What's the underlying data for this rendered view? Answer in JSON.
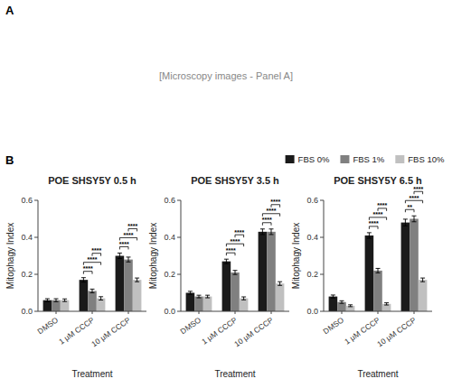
{
  "chart_data": [
    {
      "type": "bar",
      "title": "POE SHSY5Y 0.5 h",
      "categories": [
        "DMSO",
        "1 μM CCCP",
        "10 μM CCCP"
      ],
      "series": [
        {
          "name": "FBS 0%",
          "color": "#1a1a1a",
          "values": [
            0.06,
            0.17,
            0.3
          ],
          "errors": [
            0.008,
            0.012,
            0.015
          ]
        },
        {
          "name": "FBS 1%",
          "color": "#808080",
          "values": [
            0.06,
            0.11,
            0.28
          ],
          "errors": [
            0.008,
            0.01,
            0.013
          ]
        },
        {
          "name": "FBS 10%",
          "color": "#c0c0c0",
          "values": [
            0.06,
            0.07,
            0.17
          ],
          "errors": [
            0.007,
            0.009,
            0.01
          ]
        }
      ],
      "xlabel": "Treatment",
      "ylabel": "Mitophagy Index",
      "ylim": [
        0.0,
        0.6
      ],
      "yticks": [
        {
          "value": 0.0,
          "label": "0.0"
        },
        0.2,
        0.4,
        0.6
      ],
      "grid": false,
      "annotations": [
        {
          "text": "****",
          "category": "1 μM CCCP",
          "series": [
            "FBS 0%",
            "FBS 1%"
          ]
        },
        {
          "text": "****",
          "category": "1 μM CCCP",
          "series": [
            "FBS 0%",
            "FBS 10%"
          ]
        },
        {
          "text": "****",
          "category": "1 μM CCCP",
          "series": [
            "FBS 1%",
            "FBS 10%"
          ]
        },
        {
          "text": "****",
          "category": "10 μM CCCP",
          "series": [
            "FBS 0%",
            "FBS 1%"
          ]
        },
        {
          "text": "****",
          "category": "10 μM CCCP",
          "series": [
            "FBS 0%",
            "FBS 10%"
          ]
        },
        {
          "text": "****",
          "category": "10 μM CCCP",
          "series": [
            "FBS 1%",
            "FBS 10%"
          ]
        }
      ]
    },
    {
      "type": "bar",
      "title": "POE SHSY5Y 3.5 h",
      "categories": [
        "DMSO",
        "1 μM CCCP",
        "10 μM CCCP"
      ],
      "series": [
        {
          "name": "FBS 0%",
          "color": "#1a1a1a",
          "values": [
            0.1,
            0.27,
            0.43
          ],
          "errors": [
            0.008,
            0.012,
            0.015
          ]
        },
        {
          "name": "FBS 1%",
          "color": "#808080",
          "values": [
            0.08,
            0.21,
            0.43
          ],
          "errors": [
            0.007,
            0.011,
            0.015
          ]
        },
        {
          "name": "FBS 10%",
          "color": "#c0c0c0",
          "values": [
            0.08,
            0.07,
            0.15
          ],
          "errors": [
            0.007,
            0.008,
            0.01
          ]
        }
      ],
      "xlabel": "Treatment",
      "ylabel": "Mitophagy Index",
      "ylim": [
        0.0,
        0.6
      ],
      "yticks": [
        {
          "value": 0.0,
          "label": "0.0"
        },
        0.2,
        0.4,
        0.6
      ],
      "grid": false,
      "annotations": [
        {
          "text": "****",
          "category": "1 μM CCCP",
          "series": [
            "FBS 0%",
            "FBS 1%"
          ]
        },
        {
          "text": "****",
          "category": "1 μM CCCP",
          "series": [
            "FBS 0%",
            "FBS 10%"
          ]
        },
        {
          "text": "****",
          "category": "1 μM CCCP",
          "series": [
            "FBS 1%",
            "FBS 10%"
          ]
        },
        {
          "text": "****",
          "category": "10 μM CCCP",
          "series": [
            "FBS 0%",
            "FBS 1%"
          ]
        },
        {
          "text": "****",
          "category": "10 μM CCCP",
          "series": [
            "FBS 0%",
            "FBS 10%"
          ]
        },
        {
          "text": "****",
          "category": "10 μM CCCP",
          "series": [
            "FBS 1%",
            "FBS 10%"
          ]
        }
      ]
    },
    {
      "type": "bar",
      "title": "POE SHSY5Y 6.5 h",
      "categories": [
        "DMSO",
        "1 μM CCCP",
        "10 μM CCCP"
      ],
      "series": [
        {
          "name": "FBS 0%",
          "color": "#1a1a1a",
          "values": [
            0.08,
            0.41,
            0.48
          ],
          "errors": [
            0.008,
            0.015,
            0.018
          ]
        },
        {
          "name": "FBS 1%",
          "color": "#808080",
          "values": [
            0.05,
            0.22,
            0.5
          ],
          "errors": [
            0.007,
            0.012,
            0.016
          ]
        },
        {
          "name": "FBS 10%",
          "color": "#c0c0c0",
          "values": [
            0.03,
            0.04,
            0.17
          ],
          "errors": [
            0.005,
            0.006,
            0.01
          ]
        }
      ],
      "xlabel": "Treatment",
      "ylabel": "Mitophagy Index",
      "ylim": [
        0.0,
        0.6
      ],
      "yticks": [
        {
          "value": 0.0,
          "label": "0.0"
        },
        0.2,
        0.4,
        0.6
      ],
      "grid": false,
      "legend": "upper right",
      "annotations": [
        {
          "text": "****",
          "category": "1 μM CCCP",
          "series": [
            "FBS 0%",
            "FBS 1%"
          ]
        },
        {
          "text": "****",
          "category": "1 μM CCCP",
          "series": [
            "FBS 0%",
            "FBS 10%"
          ]
        },
        {
          "text": "****",
          "category": "1 μM CCCP",
          "series": [
            "FBS 1%",
            "FBS 10%"
          ]
        },
        {
          "text": "**",
          "category": "10 μM CCCP",
          "series": [
            "FBS 0%",
            "FBS 1%"
          ]
        },
        {
          "text": "****",
          "category": "10 μM CCCP",
          "series": [
            "FBS 0%",
            "FBS 10%"
          ]
        },
        {
          "text": "****",
          "category": "10 μM CCCP",
          "series": [
            "FBS 1%",
            "FBS 10%"
          ]
        }
      ]
    }
  ],
  "annotations": [
    "A",
    "B",
    "[Microscopy images - Panel A]"
  ]
}
